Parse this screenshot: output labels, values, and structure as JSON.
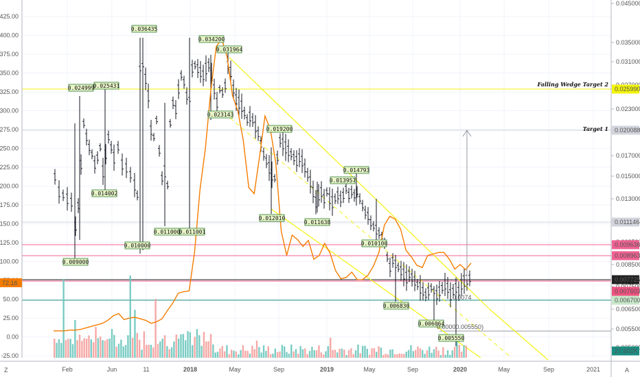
{
  "chart_data": {
    "type": "line",
    "title": "",
    "left_axis": {
      "ticks": [
        "425.00",
        "400.00",
        "375.00",
        "350.00",
        "325.00",
        "300.00",
        "275.00",
        "250.00",
        "225.00",
        "200.00",
        "175.00",
        "150.00",
        "125.00",
        "100.00",
        "75.00",
        "50.00",
        "25.00",
        "0.00",
        "-25.00"
      ],
      "ylim": [
        -25,
        425
      ]
    },
    "right_axis": {
      "ticks": [
        "0.045000",
        "0.035000",
        "0.031000",
        "0.027000",
        "0.023000",
        "0.019000",
        "0.017000",
        "0.015000",
        "0.013000",
        "0.011000",
        "0.009500",
        "0.008500",
        "0.007500",
        "0.006500",
        "0.005500",
        "0.005000"
      ]
    },
    "x_ticks": [
      "Feb",
      "Jun",
      "11",
      "2018",
      "May",
      "Sep",
      "2019",
      "May",
      "Sep",
      "2020",
      "May",
      "Sep",
      "2021"
    ],
    "x_bold_ticks": [
      "2018",
      "2019",
      "2020"
    ],
    "price_annotations": [
      "0.024999",
      "0.025431",
      "0.036435",
      "0.034200",
      "0.031964",
      "0.014002",
      "0.023143",
      "0.019200",
      "0.013957",
      "0.014793",
      "0.009000",
      "0.010000",
      "0.011000",
      "0.011001",
      "0.012010",
      "0.011638",
      "0.010100",
      "0.006830",
      "0.006064",
      "0.005550"
    ],
    "faint_labels": [
      "0.00000.005550)",
      "0.0074"
    ],
    "targets": [
      {
        "label": "Falling Wedge Target 2",
        "value": "0.025990",
        "color": "#f3f30c"
      },
      {
        "label": "Target 1",
        "value": "0.020088",
        "color": "#d1d4dc"
      }
    ],
    "right_tags": [
      {
        "value": "0.011146",
        "color": "#d1d4dc",
        "text_color": "#222"
      },
      {
        "value": "0.009636",
        "color": "#f06292",
        "text_color": "#fff"
      },
      {
        "value": "0.008963",
        "color": "#f06292",
        "text_color": "#fff"
      },
      {
        "value": "0.007725",
        "color": "#222222",
        "text_color": "#fff"
      },
      {
        "value": "0.007603",
        "color": "#ef5280",
        "text_color": "#fff"
      },
      {
        "value": "0.006700",
        "color": "#c8e6c9",
        "text_color": "#111"
      },
      {
        "value": "27.602K",
        "color": "#1a8d82",
        "text_color": "#fff"
      }
    ],
    "left_tag": {
      "value": "72.16",
      "color": "#f57c00"
    },
    "corner_labels": {
      "left": "Z",
      "right": "A"
    },
    "orange_series_values": [
      8,
      8,
      8,
      9,
      9,
      10,
      12,
      14,
      16,
      18,
      22,
      28,
      31,
      23,
      25,
      26,
      24,
      22,
      18,
      20,
      24,
      35,
      45,
      58,
      60,
      61,
      112,
      195,
      250,
      327,
      385,
      395,
      372,
      320,
      299,
      260,
      198,
      190,
      240,
      293,
      275,
      230,
      140,
      108,
      135,
      129,
      120,
      128,
      103,
      108,
      124,
      111,
      88,
      77,
      79,
      86,
      76,
      76,
      82,
      94,
      112,
      148,
      160,
      156,
      143,
      115,
      106,
      95,
      92,
      108,
      110,
      112,
      112,
      103,
      90,
      96,
      89,
      98
    ]
  },
  "colors": {
    "price": "#131722",
    "oscillator": "#f57c00",
    "volume_up": "#6cc7bd",
    "volume_down": "#f4a09c",
    "wedge": "#f3f30c"
  }
}
